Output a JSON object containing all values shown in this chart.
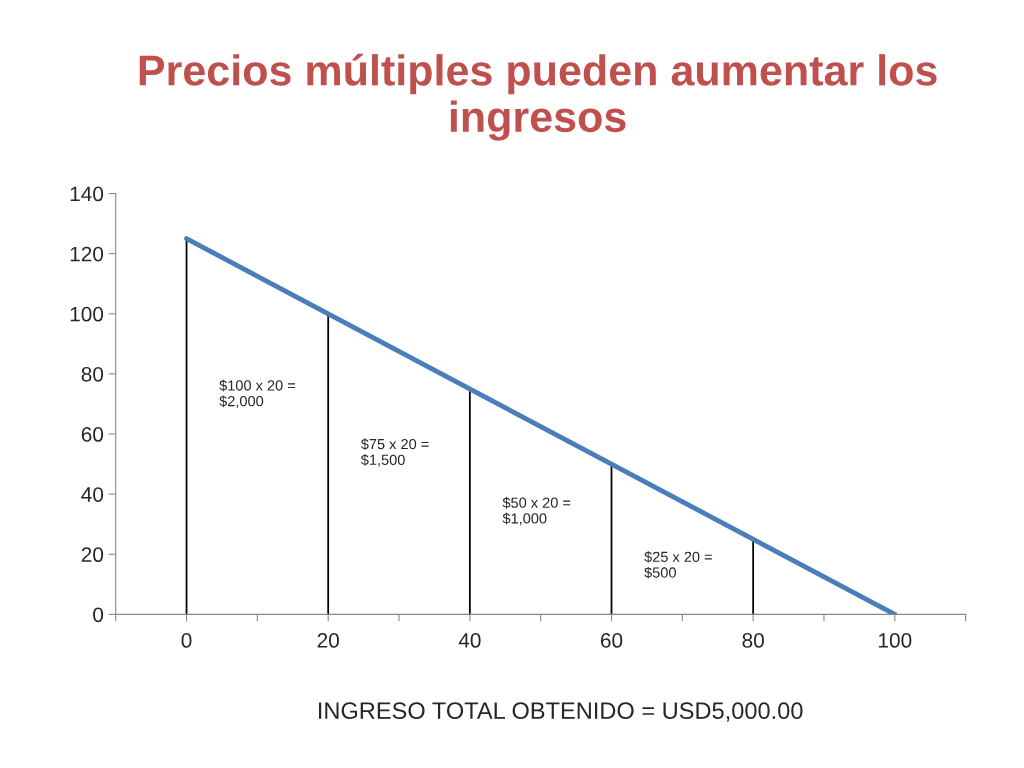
{
  "chart_data": {
    "type": "line",
    "title": "Precios múltiples pueden aumentar los ingresos",
    "series": [
      {
        "color": "#4a7ebb",
        "x": [
          0,
          100
        ],
        "values": [
          125,
          0
        ]
      },
      {
        "type": "bar",
        "color": "#000000",
        "x": [
          0,
          20,
          40,
          60,
          80
        ],
        "values": [
          125,
          100,
          75,
          50,
          25
        ]
      }
    ],
    "xlim": [
      -10,
      110
    ],
    "xticks": [
      {
        "value": -10,
        "label": null
      },
      0,
      {
        "value": 10,
        "label": null
      },
      20,
      {
        "value": 30,
        "label": null
      },
      40,
      {
        "value": 50,
        "label": null
      },
      60,
      {
        "value": 70,
        "label": null
      },
      80,
      {
        "value": 90,
        "label": null
      },
      100,
      {
        "value": 110,
        "label": null
      }
    ],
    "ylim": [
      0,
      140
    ],
    "yticks": [
      0,
      20,
      40,
      60,
      80,
      100,
      120,
      140
    ],
    "grid": false,
    "annotations": [
      "$100 x 20 =\n$2,000",
      "$75 x 20 =\n$1,500",
      "$50 x 20 =\n$1,000",
      "$25 x 20 =\n$500",
      "INGRESO TOTAL OBTENIDO = USD5,000.00"
    ]
  }
}
